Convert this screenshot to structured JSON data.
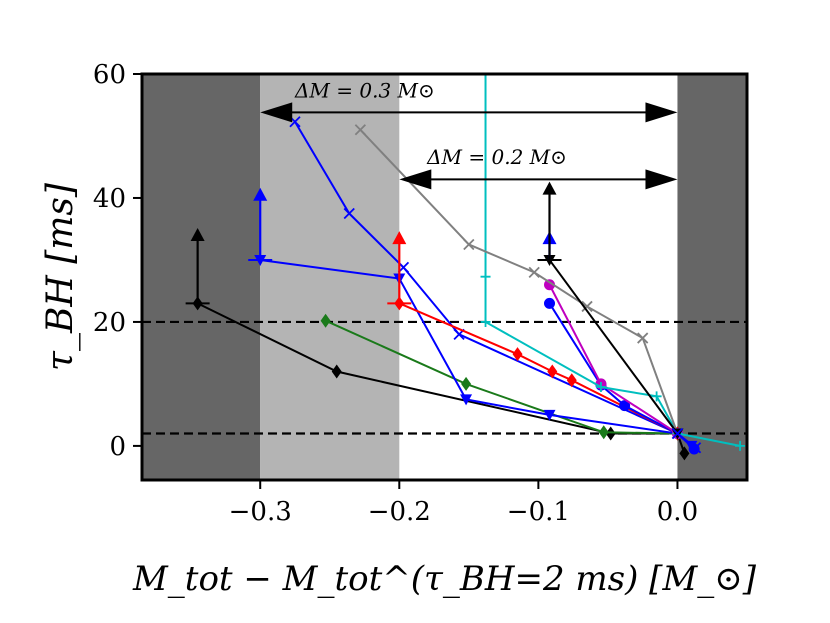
{
  "chart_data": {
    "type": "line",
    "title": "",
    "xlabel": "M_tot − M_tot^(τ_BH=2 ms) [M_⊙]",
    "ylabel": "τ_BH [ms]",
    "xlim": [
      -0.385,
      0.05
    ],
    "ylim": [
      -5.5,
      60
    ],
    "x_ticks": [
      -0.3,
      -0.2,
      -0.1,
      0.0
    ],
    "x_tick_labels": [
      "−0.3",
      "−0.2",
      "−0.1",
      "0.0"
    ],
    "y_ticks": [
      0,
      20,
      40,
      60
    ],
    "y_tick_labels": [
      "0",
      "20",
      "40",
      "60"
    ],
    "grid": false,
    "shaded_regions": [
      {
        "x0": -0.385,
        "x1": -0.3,
        "color": "#666666"
      },
      {
        "x0": -0.3,
        "x1": -0.2,
        "color": "#b4b4b4"
      },
      {
        "x0": 0.0,
        "x1": 0.05,
        "color": "#666666"
      }
    ],
    "hlines": [
      {
        "y": 20,
        "style": "dashed",
        "color": "#000000"
      },
      {
        "y": 2,
        "style": "dashed",
        "color": "#000000"
      }
    ],
    "annotations": [
      {
        "text": "ΔM = 0.3 M⊙",
        "x": -0.275,
        "y": 56.2,
        "arrow_from": -0.3,
        "arrow_to": 0.0,
        "arrow_y": 53.8
      },
      {
        "text": "ΔM = 0.2 M⊙",
        "x": -0.18,
        "y": 45.5,
        "arrow_from": -0.2,
        "arrow_to": 0.0,
        "arrow_y": 43.0
      }
    ],
    "series": [
      {
        "name": "black",
        "color": "#000000",
        "marker": "diamond",
        "x": [
          -0.345,
          -0.245,
          -0.048,
          0.0,
          0.005
        ],
        "y": [
          23.0,
          12.0,
          2.0,
          2.0,
          -1.2
        ],
        "lower_limit": {
          "x": -0.345,
          "y": 23.0,
          "to": 34.5
        }
      },
      {
        "name": "green",
        "color": "#1a7a1a",
        "marker": "diamond",
        "x": [
          -0.253,
          -0.152,
          -0.053,
          0.0
        ],
        "y": [
          20.2,
          10.0,
          2.2,
          2.0
        ]
      },
      {
        "name": "blue_x",
        "color": "#0000ff",
        "marker": "x",
        "x": [
          -0.275,
          -0.236,
          -0.197,
          -0.157,
          0.0
        ],
        "y": [
          52.3,
          37.5,
          28.8,
          18.0,
          2.0
        ]
      },
      {
        "name": "blue_tri",
        "color": "#0000ff",
        "marker": "triangle_down",
        "x": [
          -0.3,
          -0.2,
          -0.152,
          -0.092,
          0.0,
          0.01
        ],
        "y": [
          30.0,
          27.0,
          7.5,
          5.0,
          2.0,
          0.0
        ],
        "lower_limit": {
          "x": -0.3,
          "y": 30.0,
          "to": 41.0
        }
      },
      {
        "name": "red",
        "color": "#ff0000",
        "marker": "diamond",
        "x": [
          -0.2,
          -0.115,
          -0.09,
          -0.076,
          0.0
        ],
        "y": [
          23.0,
          14.8,
          12.0,
          10.6,
          2.0
        ],
        "lower_limit": {
          "x": -0.2,
          "y": 23.0,
          "to": 34.0
        }
      },
      {
        "name": "blue_circle",
        "color": "#0000ff",
        "marker": "circle",
        "x": [
          -0.092,
          -0.055,
          -0.038,
          0.0,
          0.012
        ],
        "y": [
          23.0,
          9.8,
          6.5,
          2.0,
          -0.5
        ],
        "lower_limit": {
          "x": -0.092,
          "y": 30.0,
          "to": 34.0
        }
      },
      {
        "name": "magenta",
        "color": "#bf00bf",
        "marker": "circle",
        "x": [
          -0.092,
          -0.055,
          0.0
        ],
        "y": [
          26.0,
          10.0,
          2.0
        ]
      },
      {
        "name": "cyan",
        "color": "#00bfbf",
        "marker": "plus",
        "x": [
          -0.138,
          -0.138,
          -0.138,
          -0.055,
          -0.015,
          0.0,
          0.045
        ],
        "y": [
          60.0,
          27.3,
          20.0,
          9.5,
          8.0,
          2.0,
          0.0
        ]
      },
      {
        "name": "gray",
        "color": "#808080",
        "marker": "x",
        "x": [
          -0.228,
          -0.15,
          -0.103,
          -0.065,
          -0.025,
          0.0
        ],
        "y": [
          51.0,
          32.5,
          28.0,
          22.5,
          17.4,
          2.0
        ]
      },
      {
        "name": "black_top",
        "color": "#000000",
        "marker": "triangle_down",
        "x": [
          -0.092,
          0.0
        ],
        "y": [
          30.0,
          2.0
        ],
        "lower_limit": {
          "x": -0.092,
          "y": 30.0,
          "to": 42.0
        }
      },
      {
        "name": "blue_x_tail",
        "color": "#0000ff",
        "marker": "x",
        "x": [
          0.0,
          0.013
        ],
        "y": [
          2.0,
          -0.3
        ]
      }
    ]
  }
}
